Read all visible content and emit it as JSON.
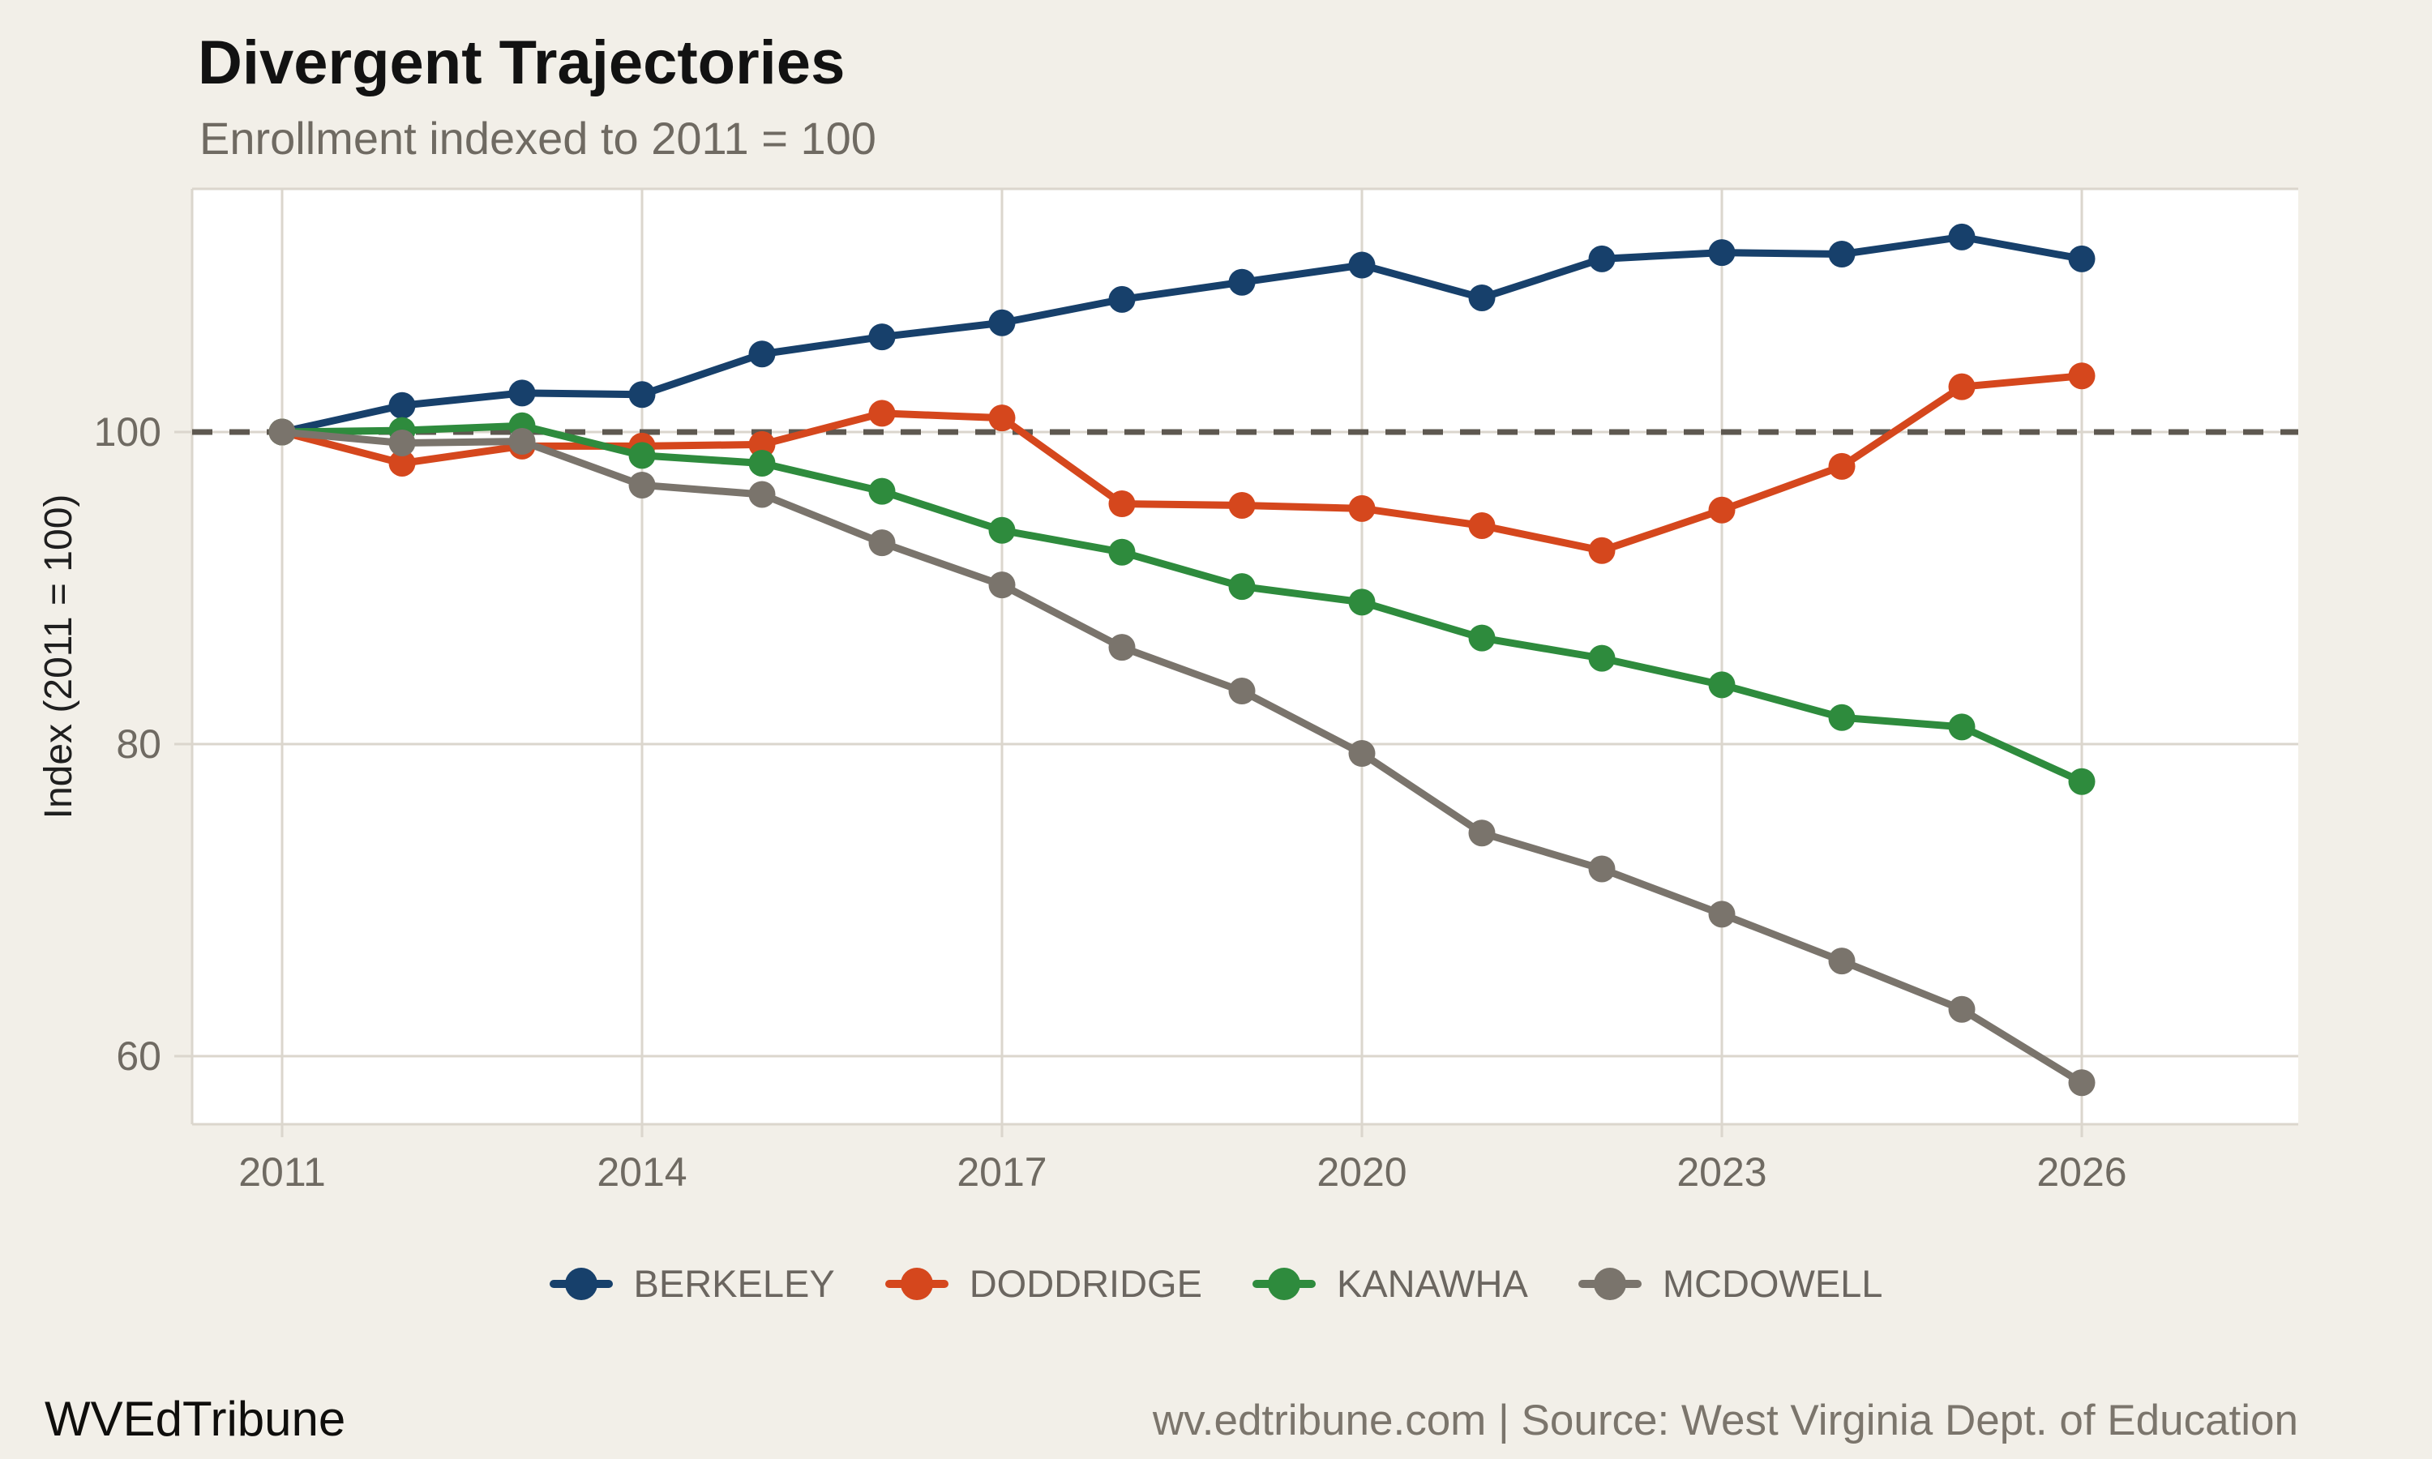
{
  "page": {
    "background_color": "#F2EFE8",
    "panel_color": "#FFFFFF",
    "grid_color": "#DBD6CD",
    "axis_text_color": "#6F6A62",
    "axis_title_color": "#1F1F1F",
    "reference_line_color": "#5E5850"
  },
  "header": {
    "title": "Divergent Trajectories",
    "subtitle": "Enrollment indexed to 2011 = 100"
  },
  "chart_data": {
    "type": "line",
    "title": "Divergent Trajectories",
    "subtitle": "Enrollment indexed to 2011 = 100",
    "xlabel": "",
    "ylabel": "Index (2011 = 100)",
    "x": [
      2011,
      2012,
      2013,
      2014,
      2015,
      2016,
      2017,
      2018,
      2019,
      2020,
      2021,
      2022,
      2023,
      2024,
      2025,
      2026
    ],
    "x_tick_labels": [
      "2011",
      "2014",
      "2017",
      "2020",
      "2023",
      "2026"
    ],
    "y_ticks": [
      100,
      80,
      60
    ],
    "ylim": [
      55.6,
      115.6
    ],
    "grid": true,
    "legend_position": "bottom",
    "reference_line_y": 100,
    "reference_line_style": "dashed",
    "series": [
      {
        "name": "BERKELEY",
        "color": "#17406B",
        "values": [
          100,
          101.7,
          102.5,
          102.4,
          105.0,
          106.1,
          107.0,
          108.5,
          109.6,
          110.7,
          108.6,
          111.1,
          111.5,
          111.4,
          112.5,
          111.1
        ]
      },
      {
        "name": "DODDRIDGE",
        "color": "#D5471D",
        "values": [
          100,
          98.0,
          99.1,
          99.1,
          99.2,
          101.2,
          100.9,
          95.4,
          95.3,
          95.1,
          94.0,
          92.4,
          95.0,
          97.8,
          102.9,
          103.6
        ]
      },
      {
        "name": "KANAWHA",
        "color": "#2E8B3D",
        "values": [
          100,
          100.1,
          100.4,
          98.5,
          98.0,
          96.2,
          93.7,
          92.3,
          90.1,
          89.1,
          86.8,
          85.5,
          83.8,
          81.7,
          81.1,
          77.6
        ]
      },
      {
        "name": "MCDOWELL",
        "color": "#7A746C",
        "values": [
          100,
          99.3,
          99.4,
          96.6,
          96.0,
          92.9,
          90.2,
          86.2,
          83.4,
          79.4,
          74.3,
          72.0,
          69.1,
          66.1,
          63.0,
          58.3
        ]
      }
    ]
  },
  "footer": {
    "brand": "WVEdTribune",
    "attribution": "wv.edtribune.com | Source: West Virginia Dept. of Education"
  }
}
